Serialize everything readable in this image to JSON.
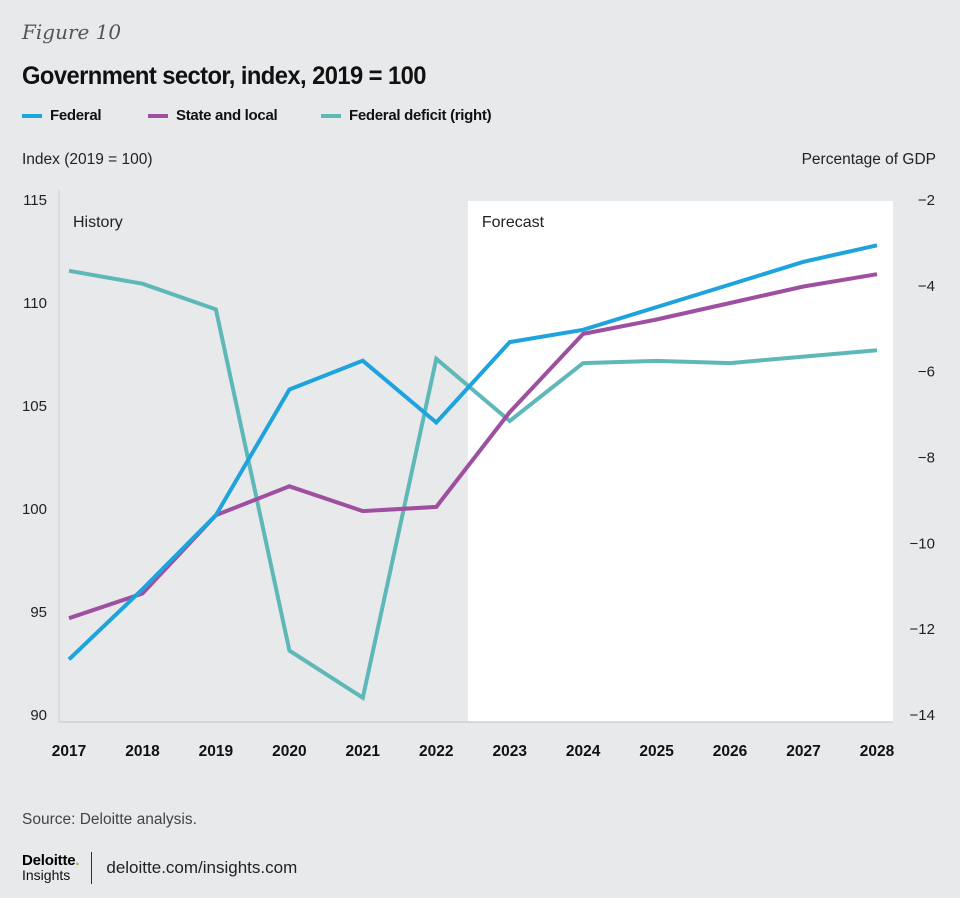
{
  "figure_label": "Figure 10",
  "chart_data": {
    "type": "line",
    "title": "Government sector, index, 2019 = 100",
    "xlabel": "",
    "ylabel": "Index (2019 = 100)",
    "ylabel_right": "Percentage of GDP",
    "x": [
      "2017",
      "2018",
      "2019",
      "2020",
      "2021",
      "2022",
      "2023",
      "2024",
      "2025",
      "2026",
      "2027",
      "2028"
    ],
    "ylim": [
      90,
      115
    ],
    "yticks": [
      "115",
      "110",
      "105",
      "100",
      "95",
      "90"
    ],
    "ytick_values": [
      115,
      110,
      105,
      100,
      95,
      90
    ],
    "ylim_right": [
      -14,
      -2
    ],
    "yticks_right": [
      "−2",
      "−4",
      "−6",
      "−8",
      "−10",
      "−12",
      "−14"
    ],
    "ytick_right_values": [
      -2,
      -4,
      -6,
      -8,
      -10,
      -12,
      -14
    ],
    "grid": false,
    "legend_position": "top-left",
    "regions": [
      {
        "label": "History",
        "from": "2017",
        "to": "2022"
      },
      {
        "label": "Forecast",
        "from": "2023",
        "to": "2028",
        "shaded": true
      }
    ],
    "series": [
      {
        "name": "Federal",
        "axis": "left",
        "color": "#1ea3dc",
        "values": [
          92.7,
          96.1,
          99.7,
          105.8,
          107.2,
          104.2,
          108.1,
          108.7,
          109.8,
          110.9,
          112.0,
          112.8
        ]
      },
      {
        "name": "State and local",
        "axis": "left",
        "color": "#9e4fa0",
        "values": [
          94.7,
          95.9,
          99.7,
          101.1,
          99.9,
          100.1,
          104.7,
          108.5,
          109.2,
          110.0,
          110.8,
          111.4
        ]
      },
      {
        "name": "Federal deficit (right)",
        "axis": "right",
        "color": "#5fb8b8",
        "values": [
          -3.65,
          -3.95,
          -4.55,
          -12.5,
          -13.6,
          -5.7,
          -7.15,
          -5.8,
          -5.75,
          -5.8,
          -5.65,
          -5.5
        ]
      }
    ]
  },
  "source": "Source: Deloitte analysis.",
  "footer": {
    "logo_main": "Deloitte",
    "logo_dot": ".",
    "logo_sub": "Insights",
    "url": "deloitte.com/insights.com"
  }
}
